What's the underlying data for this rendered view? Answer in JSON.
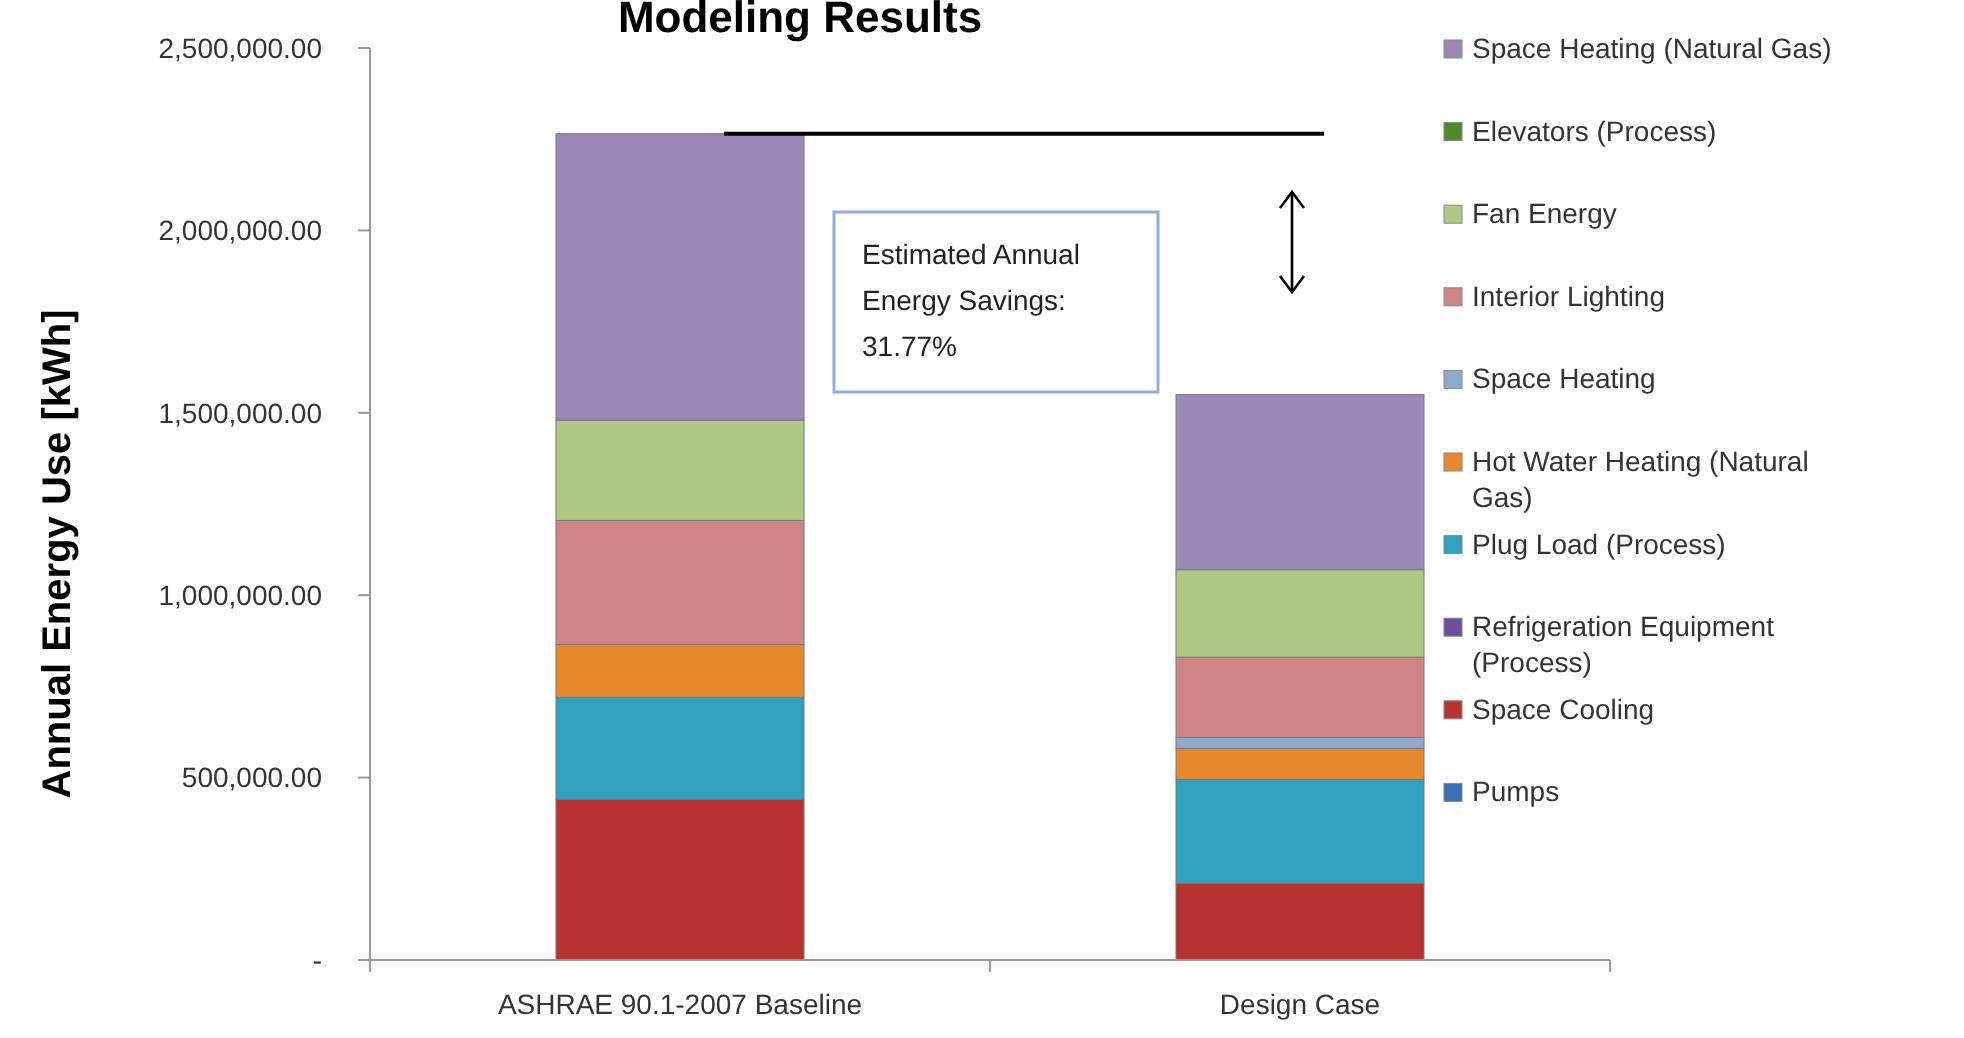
{
  "chart_data": {
    "type": "bar",
    "title": "Modeling Results",
    "ylabel": "Annual Energy Use [kWh]",
    "categories": [
      "ASHRAE 90.1-2007 Baseline",
      "Design Case"
    ],
    "stacked": true,
    "ylim": [
      0,
      2500000
    ],
    "yticks": [
      {
        "value": 0,
        "label": "-"
      },
      {
        "value": 500000,
        "label": "500,000.00"
      },
      {
        "value": 1000000,
        "label": "1,000,000.00"
      },
      {
        "value": 1500000,
        "label": "1,500,000.00"
      },
      {
        "value": 2000000,
        "label": "2,000,000.00"
      },
      {
        "value": 2500000,
        "label": "2,500,000.00"
      }
    ],
    "legend": "right",
    "grid": false,
    "series": [
      {
        "name": "Pumps",
        "color": "#3a6fb5",
        "values": [
          0,
          0
        ]
      },
      {
        "name": "Space Cooling",
        "color": "#b83232",
        "values": [
          440000,
          210000
        ]
      },
      {
        "name": "Refrigeration Equipment (Process)",
        "color": "#6a4f9a",
        "values": [
          0,
          0
        ]
      },
      {
        "name": "Plug Load (Process)",
        "color": "#31a0bc",
        "values": [
          280000,
          285000
        ]
      },
      {
        "name": "Hot Water Heating (Natural Gas)",
        "color": "#e6882b",
        "values": [
          145000,
          85000
        ]
      },
      {
        "name": "Space Heating",
        "color": "#8fa8cc",
        "values": [
          0,
          30000
        ]
      },
      {
        "name": "Interior Lighting",
        "color": "#d08585",
        "values": [
          340000,
          220000
        ]
      },
      {
        "name": "Fan Energy",
        "color": "#afc985",
        "values": [
          275000,
          240000
        ]
      },
      {
        "name": "Elevators (Process)",
        "color": "#4f8a2a",
        "values": [
          0,
          0
        ]
      },
      {
        "name": "Space Heating (Natural Gas)",
        "color": "#9c88b8",
        "values": [
          785000,
          480000
        ]
      }
    ],
    "ref_lines": [
      {
        "axis": "y",
        "value": 2265000,
        "color": "#000000"
      }
    ],
    "annotations": [
      "Estimated Annual Energy Savings:  31.77%"
    ]
  }
}
